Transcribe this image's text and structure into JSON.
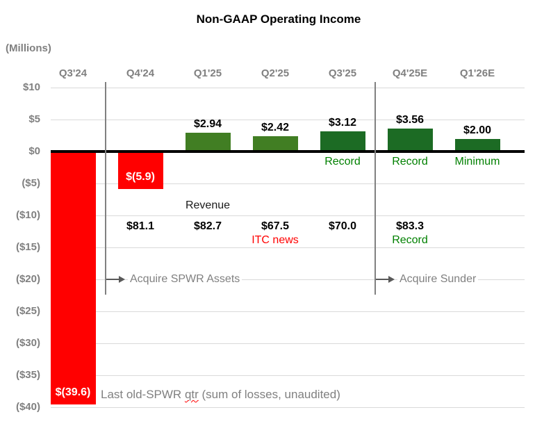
{
  "title": "Non-GAAP Operating Income",
  "units_label": "(Millions)",
  "colors": {
    "red": "#FF0000",
    "light_green": "#417E23",
    "dark_green": "#1C6B24",
    "green_text": "#008000",
    "gray_text": "#808080",
    "gridline": "#D9D9D9",
    "zero_axis": "#000000"
  },
  "y_axis": {
    "ticks": [
      "$10",
      "$5",
      "$0",
      "($5)",
      "($10)",
      "($15)",
      "($20)",
      "($25)",
      "($30)",
      "($35)",
      "($40)"
    ],
    "values": [
      10,
      5,
      0,
      -5,
      -10,
      -15,
      -20,
      -25,
      -30,
      -35,
      -40
    ]
  },
  "chart_data": {
    "type": "bar",
    "title": "Non-GAAP Operating Income",
    "ylabel": "(Millions)",
    "ylim": [
      -40,
      10
    ],
    "grid": true,
    "categories": [
      "Q3'24",
      "Q4'24",
      "Q1'25",
      "Q2'25",
      "Q3'25",
      "Q4'25E",
      "Q1'26E"
    ],
    "series": [
      {
        "name": "Non-GAAP Operating Income ($M)",
        "values": [
          -39.6,
          -5.9,
          2.94,
          2.42,
          3.12,
          3.56,
          2.0
        ],
        "labels": [
          "$(39.6)",
          "$(5.9)",
          "$2.94",
          "$2.42",
          "$3.12",
          "$3.56",
          "$2.00"
        ],
        "bar_colors": [
          "#FF0000",
          "#FF0000",
          "#417E23",
          "#417E23",
          "#1C6B24",
          "#1C6B24",
          "#1C6B24"
        ]
      }
    ],
    "bar_notes": [
      null,
      null,
      null,
      null,
      "Record",
      "Record",
      "Minimum"
    ],
    "revenue_row": {
      "heading": "Revenue",
      "values": [
        null,
        "$81.1",
        "$82.7",
        "$67.5",
        "$70.0",
        "$83.3",
        null
      ],
      "notes": [
        null,
        null,
        null,
        "ITC news",
        null,
        "Record",
        null
      ],
      "note_colors": [
        null,
        null,
        null,
        "#FF0000",
        null,
        "#008000",
        null
      ]
    }
  },
  "annotations": {
    "acquire_spwr": "Acquire SPWR Assets",
    "acquire_sunder": "Acquire Sunder",
    "bottom_note": {
      "prefix": "Last old-SPWR ",
      "word": "qtr",
      "suffix": " (sum of losses, unaudited)"
    }
  }
}
